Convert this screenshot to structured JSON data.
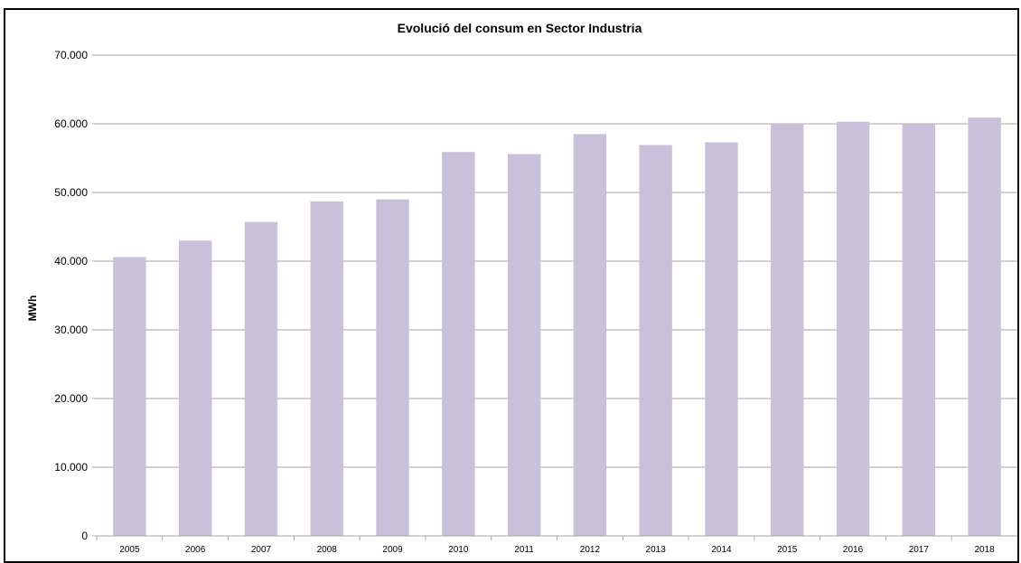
{
  "chart_data": {
    "type": "bar",
    "title": "Evolució del consum en Sector Industria",
    "xlabel": "",
    "ylabel": "MWh",
    "categories": [
      "2005",
      "2006",
      "2007",
      "2008",
      "2009",
      "2010",
      "2011",
      "2012",
      "2013",
      "2014",
      "2015",
      "2016",
      "2017",
      "2018"
    ],
    "values": [
      40600,
      43000,
      45700,
      48700,
      49000,
      55900,
      55600,
      58500,
      56900,
      57300,
      60000,
      60300,
      59900,
      60900
    ],
    "ylim": [
      0,
      70000
    ],
    "yticks": [
      0,
      10000,
      20000,
      30000,
      40000,
      50000,
      60000,
      70000
    ],
    "ytick_labels": [
      "0",
      "10.000",
      "20.000",
      "30.000",
      "40.000",
      "50.000",
      "60.000",
      "70.000"
    ],
    "grid": true,
    "legend": "none",
    "colors": {
      "bar": "#C9C0DA",
      "grid": "#A6A6A6",
      "frame": "#000000"
    }
  }
}
